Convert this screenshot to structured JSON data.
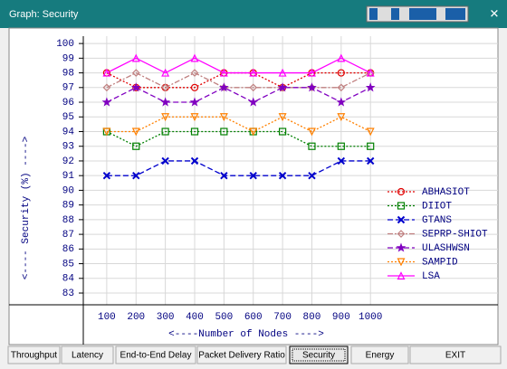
{
  "window": {
    "title": "Graph: Security"
  },
  "tabs": [
    "Throughput",
    "Latency",
    "End-to-End Delay",
    "Packet Delivery Ratio",
    "Security",
    "Energy",
    "EXIT"
  ],
  "selected_tab": 4,
  "chart_data": {
    "type": "line",
    "x_label": "<----Number of Nodes ---->",
    "y_label": "<---- Security (%) ---->",
    "x": [
      100,
      200,
      300,
      400,
      500,
      600,
      700,
      800,
      900,
      1000
    ],
    "xlim": [
      20,
      1435
    ],
    "xticks": [
      100,
      200,
      300,
      400,
      500,
      600,
      700,
      800,
      900,
      1000
    ],
    "ylim": [
      82.2,
      100.5
    ],
    "yticks": [
      83,
      84,
      85,
      86,
      87,
      88,
      89,
      90,
      91,
      92,
      93,
      94,
      95,
      96,
      97,
      98,
      99,
      100
    ],
    "grid": true,
    "legend": "right",
    "series": [
      {
        "name": "ABHASIOT",
        "color": "#e00000",
        "marker": "circle",
        "dash": "2,2",
        "values": [
          98,
          97,
          97,
          97,
          98,
          98,
          97,
          98,
          98,
          98
        ]
      },
      {
        "name": "DIIOT",
        "color": "#008000",
        "marker": "square",
        "dash": "2,2",
        "values": [
          94,
          93,
          94,
          94,
          94,
          94,
          94,
          93,
          93,
          93
        ]
      },
      {
        "name": "GTANS",
        "color": "#0000cc",
        "marker": "x",
        "dash": "6,3",
        "values": [
          91,
          91,
          92,
          92,
          91,
          91,
          91,
          91,
          92,
          92
        ]
      },
      {
        "name": "SEPRP-SHIOT",
        "color": "#c08080",
        "marker": "diamond",
        "dash": "6,2,2,2",
        "values": [
          97,
          98,
          97,
          98,
          97,
          97,
          97,
          97,
          97,
          98
        ]
      },
      {
        "name": "ULASHWSN",
        "color": "#8000c0",
        "marker": "star",
        "dash": "6,3",
        "values": [
          96,
          97,
          96,
          96,
          97,
          96,
          97,
          97,
          96,
          97
        ]
      },
      {
        "name": "SAMPID",
        "color": "#ff8000",
        "marker": "tri-down",
        "dash": "2,2",
        "values": [
          94,
          94,
          95,
          95,
          95,
          94,
          95,
          94,
          95,
          94
        ]
      },
      {
        "name": "LSA",
        "color": "#ff00ff",
        "marker": "tri-up",
        "dash": "",
        "values": [
          98,
          99,
          98,
          99,
          98,
          98,
          98,
          98,
          99,
          98
        ]
      }
    ]
  }
}
